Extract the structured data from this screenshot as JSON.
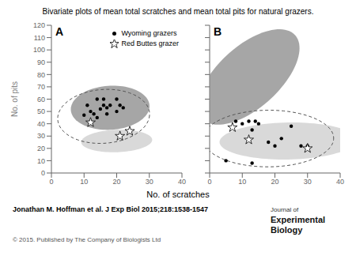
{
  "chart_data": [
    {
      "type": "scatter",
      "title": "Bivariate plots of mean total scratches and mean total pits for natural grazers.",
      "panel_label": "A",
      "xlabel": "No. of scratches",
      "ylabel": "No. of pits",
      "xlim": [
        0,
        40
      ],
      "ylim": [
        0,
        120
      ],
      "xticks": [
        0,
        10,
        20,
        30,
        40
      ],
      "yticks": [
        0,
        10,
        20,
        30,
        40,
        50,
        60,
        70,
        80,
        90,
        100,
        110,
        120
      ],
      "legend": "upper right",
      "series": [
        {
          "name": "Wyoming grazers",
          "color": "#000000",
          "marker": "dot",
          "x": [
            10,
            11,
            12,
            13,
            14,
            15,
            16,
            17,
            18,
            20,
            21,
            14,
            16,
            17,
            20,
            22
          ],
          "values": [
            47,
            55,
            50,
            48,
            60,
            52,
            55,
            48,
            55,
            60,
            55,
            45,
            60,
            53,
            50,
            53
          ]
        },
        {
          "name": "Red Buttes grazer",
          "color": "#000000",
          "marker": "open_star",
          "x": [
            12,
            21,
            24
          ],
          "values": [
            41,
            30,
            34
          ]
        }
      ],
      "ellipses": [
        {
          "center_x": 18,
          "center_y": 53,
          "width": 24,
          "height": 36,
          "angle": -5,
          "color": "#888888"
        },
        {
          "center_x": 20,
          "center_y": 26,
          "width": 22,
          "height": 18,
          "angle": 15,
          "color": "#cccccc"
        },
        {
          "center_x": 16,
          "center_y": 46,
          "width": 28,
          "height": 44,
          "angle": -5,
          "color": "#555555",
          "line_style": "dashed"
        }
      ],
      "citation": "Jonathan M. Hoffman et al. J Exp Biol 2015;218:1538-1547",
      "copyright": "© 2015. Published by The Company of Biologists Ltd",
      "annotations": [
        "Journal of",
        "Experimental",
        "Biology"
      ]
    },
    {
      "type": "scatter",
      "panel_label": "B",
      "xlim": [
        0,
        40
      ],
      "ylim": [
        0,
        120
      ],
      "xticks": [
        0,
        10,
        20,
        30,
        40
      ],
      "yticks": [
        0,
        10,
        20,
        30,
        40,
        50,
        60,
        70,
        80,
        90,
        100,
        110,
        120
      ],
      "tick_labels": "x",
      "series": [
        {
          "name": "Wyoming grazers",
          "color": "#000000",
          "marker": "dot",
          "x": [
            5,
            8,
            10,
            12,
            13,
            14,
            15,
            18,
            20,
            22,
            25,
            28,
            30,
            13
          ],
          "values": [
            10,
            42,
            40,
            42,
            35,
            42,
            40,
            25,
            22,
            28,
            38,
            22,
            22,
            8
          ]
        },
        {
          "name": "Red Buttes grazer",
          "color": "#000000",
          "marker": "open_star",
          "x": [
            7,
            12,
            30
          ],
          "values": [
            37,
            27,
            20
          ]
        }
      ],
      "ellipses": [
        {
          "center_x": 12,
          "center_y": 78,
          "width": 24,
          "height": 80,
          "angle": -15,
          "color": "#888888"
        },
        {
          "center_x": 24,
          "center_y": 26,
          "width": 42,
          "height": 30,
          "angle": 5,
          "color": "#cccccc"
        },
        {
          "center_x": 18,
          "center_y": 28,
          "width": 40,
          "height": 46,
          "angle": -2,
          "color": "#555555",
          "line_style": "dashed"
        }
      ]
    }
  ]
}
